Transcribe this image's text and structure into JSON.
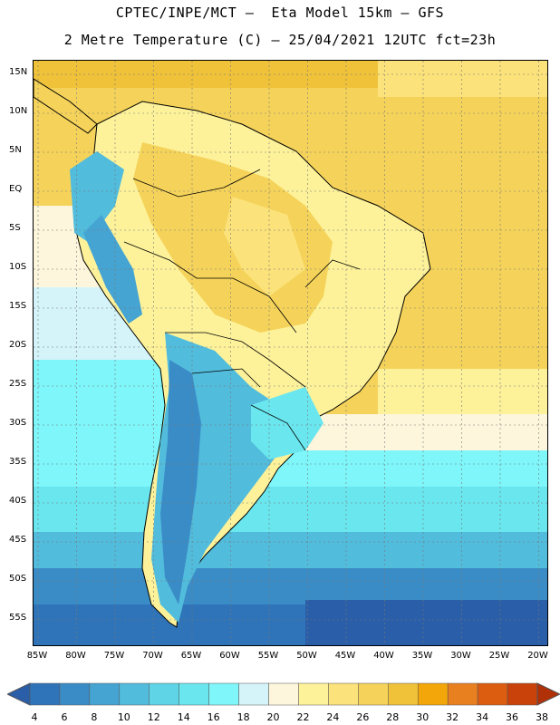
{
  "header": {
    "line1": "CPTEC/INPE/MCT –  Eta Model 15km – GFS",
    "line2": "2 Metre Temperature (C) – 25/04/2021 12UTC fct=23h"
  },
  "map": {
    "lat_labels": [
      "15N",
      "10N",
      "5N",
      "EQ",
      "5S",
      "10S",
      "15S",
      "20S",
      "25S",
      "30S",
      "35S",
      "40S",
      "45S",
      "50S",
      "55S"
    ],
    "lon_labels": [
      "85W",
      "80W",
      "75W",
      "70W",
      "65W",
      "60W",
      "55W",
      "50W",
      "45W",
      "40W",
      "35W",
      "30W",
      "25W",
      "20W"
    ],
    "gridlines": true
  },
  "colorbar": {
    "labels": [
      "4",
      "6",
      "8",
      "10",
      "12",
      "14",
      "16",
      "18",
      "20",
      "22",
      "24",
      "26",
      "28",
      "30",
      "32",
      "34",
      "36",
      "38"
    ],
    "colors": [
      "#2a5ea8",
      "#2f74b8",
      "#3a8cc6",
      "#46a4d2",
      "#52bcdc",
      "#5ed4e6",
      "#6ae6ee",
      "#7ef6fa",
      "#d4f4fa",
      "#fdf6dc",
      "#fdf29a",
      "#fbe27a",
      "#f5d35a",
      "#efc23a",
      "#f3a60a",
      "#e98020",
      "#dc5c10",
      "#c8420a",
      "#b03008"
    ]
  }
}
